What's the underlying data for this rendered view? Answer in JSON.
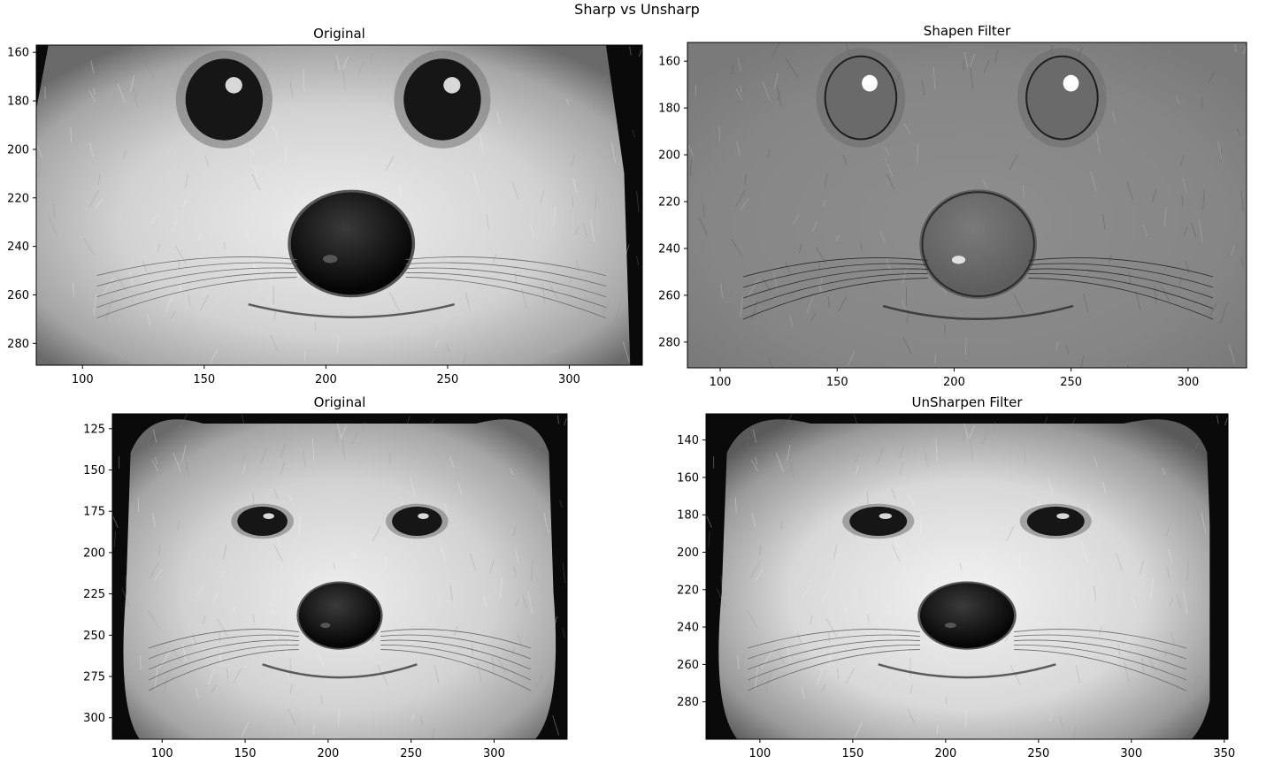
{
  "suptitle": "Sharp vs Unsharp",
  "chart_data": [
    {
      "type": "image",
      "title": "Original",
      "cmap": "gray",
      "style": "original",
      "xlim": [
        81,
        330
      ],
      "ylim": [
        289,
        157
      ],
      "xticks": [
        100,
        150,
        200,
        250,
        300
      ],
      "yticks": [
        160,
        180,
        200,
        220,
        240,
        260,
        280
      ]
    },
    {
      "type": "image",
      "title": "Shapen Filter",
      "cmap": "gray",
      "style": "sharpen",
      "xlim": [
        86,
        325
      ],
      "ylim": [
        291,
        152
      ],
      "xticks": [
        100,
        150,
        200,
        250,
        300
      ],
      "yticks": [
        160,
        180,
        200,
        220,
        240,
        260,
        280
      ]
    },
    {
      "type": "image",
      "title": "Original",
      "cmap": "gray",
      "style": "original",
      "xlim": [
        70,
        344
      ],
      "ylim": [
        313,
        116
      ],
      "xticks": [
        100,
        150,
        200,
        250,
        300
      ],
      "yticks": [
        125,
        150,
        175,
        200,
        225,
        250,
        275,
        300
      ]
    },
    {
      "type": "image",
      "title": "UnSharpen Filter",
      "cmap": "gray",
      "style": "unsharpen",
      "xlim": [
        71,
        352
      ],
      "ylim": [
        300,
        126
      ],
      "xticks": [
        100,
        150,
        200,
        250,
        300,
        350
      ],
      "yticks": [
        140,
        160,
        180,
        200,
        220,
        240,
        260,
        280
      ]
    }
  ]
}
